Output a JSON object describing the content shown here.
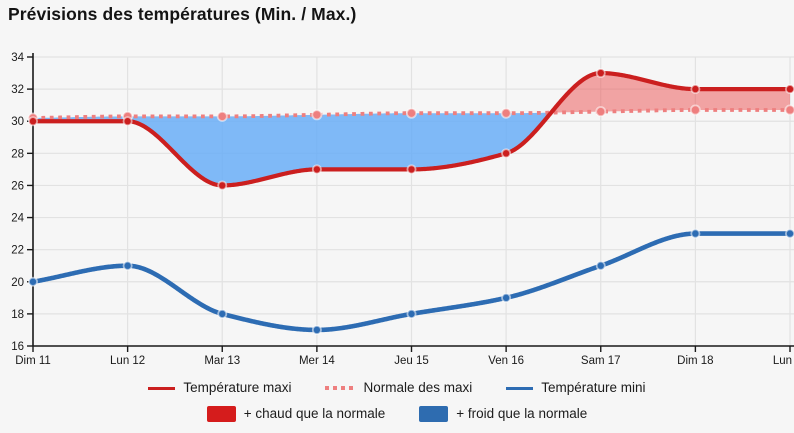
{
  "title": "Prévisions des températures (Min. / Max.)",
  "colors": {
    "background": "#f6f6f6",
    "grid": "#e2e2e2",
    "axis": "#1a1a1a",
    "tick_text": "#1a1a1a",
    "maxi_line": "#cb1f1f",
    "normale_line": "#ee7f7f",
    "mini_line": "#2d6cb3",
    "chaud_area": "rgba(235,80,80,0.5)",
    "froid_area": "rgba(97,170,247,0.8)",
    "chaud_swatch": "#d51c1c",
    "froid_swatch": "#2e6cb0",
    "marker_ring": "rgba(255,255,255,0.55)"
  },
  "chart_data": {
    "type": "line",
    "title": "Prévisions des températures (Min. / Max.)",
    "xlabel": "",
    "ylabel": "",
    "categories": [
      "Dim 11",
      "Lun 12",
      "Mar 13",
      "Mer 14",
      "Jeu 15",
      "Ven 16",
      "Sam 17",
      "Dim 18",
      "Lun"
    ],
    "series": [
      {
        "name": "Température maxi",
        "style": "solid",
        "color": "#cb1f1f",
        "values": [
          30,
          30,
          26,
          27,
          27,
          28,
          33,
          32,
          32
        ]
      },
      {
        "name": "Normale des maxi",
        "style": "dotted",
        "color": "#ee7f7f",
        "values": [
          30.2,
          30.3,
          30.3,
          30.4,
          30.5,
          30.5,
          30.6,
          30.7,
          30.7
        ]
      },
      {
        "name": "Température mini",
        "style": "solid",
        "color": "#2d6cb3",
        "values": [
          20,
          21,
          18,
          17,
          18,
          19,
          21,
          23,
          23
        ]
      }
    ],
    "fills": [
      {
        "name": "+ chaud que la normale",
        "rule": "maxi au-dessus de la normale",
        "swatch": "#d51c1c"
      },
      {
        "name": "+ froid que la normale",
        "rule": "maxi en dessous de la normale",
        "swatch": "#2e6cb0"
      }
    ],
    "ylim": [
      16,
      34
    ],
    "ytick_step": 2,
    "grid": true,
    "legend_position": "bottom"
  }
}
